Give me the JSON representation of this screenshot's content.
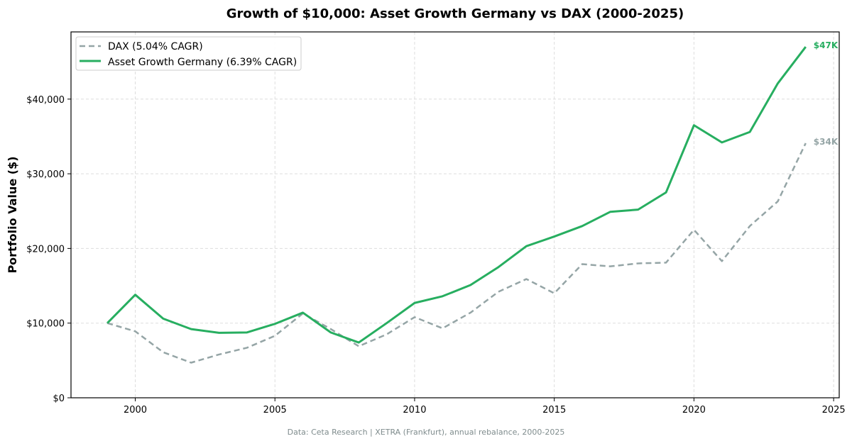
{
  "chart_data": {
    "type": "line",
    "title": "Growth of $10,000: Asset Growth Germany vs DAX (2000-2025)",
    "xlabel": "",
    "ylabel": "Portfolio Value ($)",
    "xlim": [
      1997.7,
      2025.2
    ],
    "ylim": [
      0,
      49000
    ],
    "xticks": [
      2000,
      2005,
      2010,
      2015,
      2020,
      2025
    ],
    "yticks": [
      0,
      10000,
      20000,
      30000,
      40000
    ],
    "ytick_labels": [
      "$0",
      "$10,000",
      "$20,000",
      "$30,000",
      "$40,000"
    ],
    "grid": true,
    "legend_position": "top-left",
    "x": [
      1999,
      2000,
      2001,
      2002,
      2003,
      2004,
      2005,
      2006,
      2007,
      2008,
      2009,
      2010,
      2011,
      2012,
      2013,
      2014,
      2015,
      2016,
      2017,
      2018,
      2019,
      2020,
      2021,
      2022,
      2023,
      2024
    ],
    "series": [
      {
        "name": "DAX (5.04% CAGR)",
        "color": "#95a5a6",
        "style": "dashed",
        "end_label": "$34K",
        "values": [
          10000,
          8900,
          6100,
          4700,
          5800,
          6700,
          8300,
          11300,
          9200,
          6900,
          8500,
          10800,
          9300,
          11400,
          14200,
          15900,
          14000,
          17900,
          17600,
          18000,
          18100,
          22500,
          18300,
          23000,
          26300,
          34100
        ]
      },
      {
        "name": "Asset Growth Germany (6.39% CAGR)",
        "color": "#27ae60",
        "style": "solid",
        "end_label": "$47K",
        "values": [
          10000,
          13800,
          10600,
          9200,
          8700,
          8750,
          9900,
          11400,
          8750,
          7400,
          10000,
          12700,
          13600,
          15100,
          17500,
          20300,
          21600,
          23000,
          24900,
          25200,
          27500,
          36500,
          34200,
          35600,
          42100,
          47000
        ]
      }
    ],
    "footnote": "Data: Ceta Research | XETRA (Frankfurt), annual rebalance, 2000-2025"
  }
}
